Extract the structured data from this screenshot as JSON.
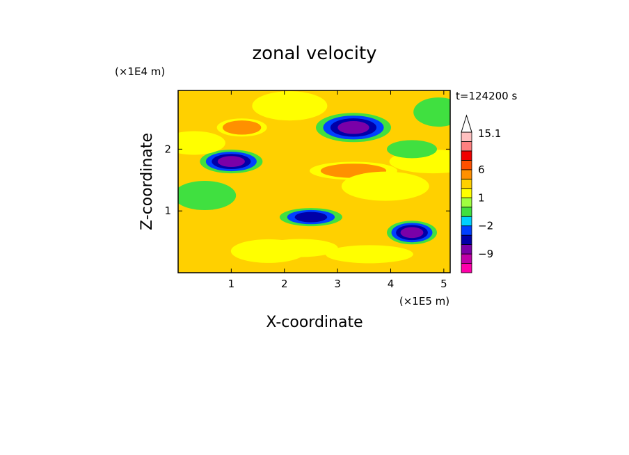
{
  "chart_data": {
    "type": "heatmap",
    "title": "zonal velocity",
    "xlabel": "X-coordinate",
    "ylabel": "Z-coordinate",
    "x_unit": "(×1E5 m)",
    "y_unit": "(×1E4 m)",
    "time_label": "t=124200 s",
    "xlim": [
      0,
      5.12
    ],
    "ylim": [
      0,
      2.95
    ],
    "x_ticks": [
      1,
      2,
      3,
      4,
      5
    ],
    "x_tick_labels": [
      "1",
      "2",
      "3",
      "4",
      "5"
    ],
    "y_ticks": [
      1,
      2
    ],
    "y_tick_labels": [
      "1",
      "2"
    ],
    "colorbar": {
      "levels": [
        -15,
        -12,
        -9,
        -6,
        -3,
        -2,
        -1,
        0,
        1,
        2,
        3,
        6,
        9,
        12,
        15.1
      ],
      "colors": [
        "#ff00aa",
        "#c000a8",
        "#7a00a8",
        "#0000a8",
        "#0040ff",
        "#00d0ff",
        "#40e040",
        "#a0ff40",
        "#ffff00",
        "#ffd000",
        "#ff9000",
        "#ff5000",
        "#f00000",
        "#ff8080",
        "#ffc0c0"
      ],
      "tick_labels": [
        "15.1",
        "6",
        "1",
        "−2",
        "−9"
      ],
      "tick_values": [
        15.1,
        6,
        1,
        -2,
        -9
      ],
      "extend": "max"
    },
    "field_features": [
      {
        "x": 1.2,
        "z": 2.35,
        "value": 6
      },
      {
        "x": 1.0,
        "z": 1.8,
        "value": -10
      },
      {
        "x": 3.3,
        "z": 2.35,
        "value": -9
      },
      {
        "x": 3.3,
        "z": 1.65,
        "value": 6
      },
      {
        "x": 4.4,
        "z": 0.65,
        "value": -9
      },
      {
        "x": 0.5,
        "z": 1.25,
        "value": -1
      },
      {
        "x": 2.3,
        "z": 0.4,
        "value": 3
      },
      {
        "x": 4.8,
        "z": 1.8,
        "value": 1
      },
      {
        "x": 4.9,
        "z": 2.6,
        "value": -1
      },
      {
        "x": 2.5,
        "z": 0.9,
        "value": -6
      },
      {
        "x": 1.7,
        "z": 0.35,
        "value": 3
      },
      {
        "x": 3.9,
        "z": 1.4,
        "value": 3
      },
      {
        "x": 4.4,
        "z": 2.0,
        "value": -2
      },
      {
        "x": 0.3,
        "z": 2.1,
        "value": 3
      },
      {
        "x": 2.1,
        "z": 2.7,
        "value": 1
      },
      {
        "x": 3.6,
        "z": 0.3,
        "value": 1
      }
    ]
  }
}
